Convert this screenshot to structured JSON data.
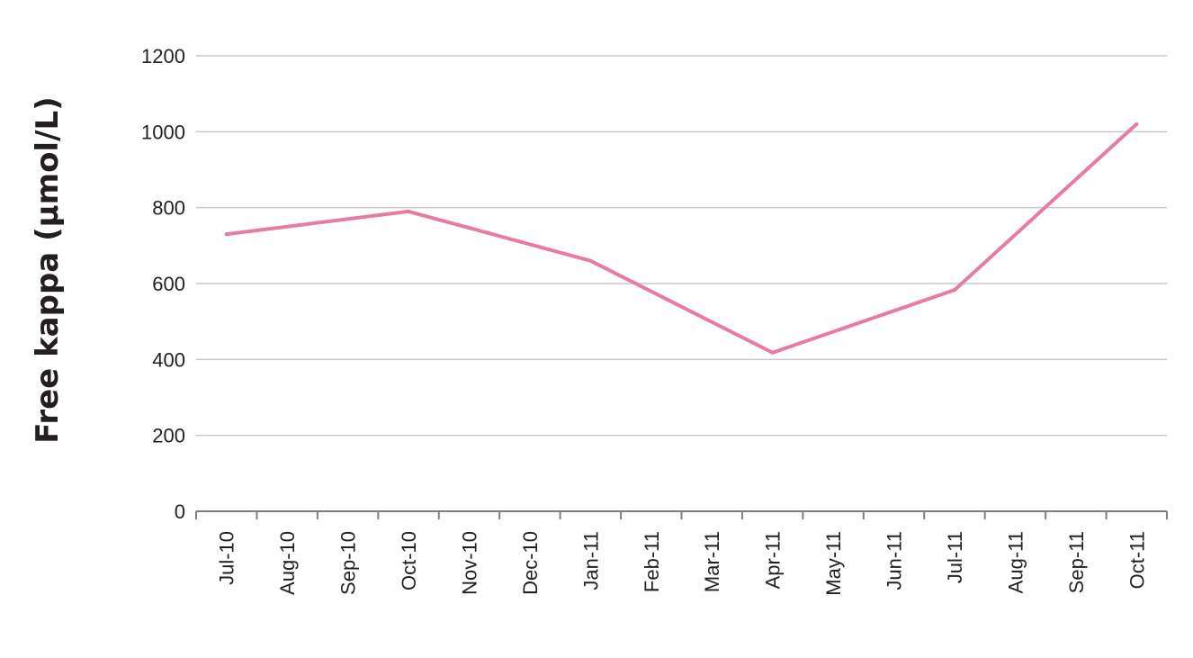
{
  "chart_data": {
    "type": "line",
    "title": "",
    "xlabel": "",
    "ylabel": "Free kappa (µmol/L)",
    "categories": [
      "Jul-10",
      "Aug-10",
      "Sep-10",
      "Oct-10",
      "Nov-10",
      "Dec-10",
      "Jan-11",
      "Feb-11",
      "Mar-11",
      "Apr-11",
      "May-11",
      "Jun-11",
      "Jul-11",
      "Aug-11",
      "Sep-11",
      "Oct-11"
    ],
    "points": [
      {
        "x": "Jul-10",
        "y": 730
      },
      {
        "x": "Oct-10",
        "y": 790
      },
      {
        "x": "Jan-11",
        "y": 660
      },
      {
        "x": "Apr-11",
        "y": 418
      },
      {
        "x": "Jul-11",
        "y": 583
      },
      {
        "x": "Oct-11",
        "y": 1020
      }
    ],
    "ylim": [
      0,
      1200
    ],
    "yticks": [
      "0",
      "200",
      "400",
      "600",
      "800",
      "1000",
      "1200"
    ],
    "grid": true,
    "legend": "none",
    "colors": {
      "line": "#e87ba6",
      "grid": "#c8c8c8",
      "axis": "#7f7f7f",
      "text": "#231f20"
    }
  }
}
